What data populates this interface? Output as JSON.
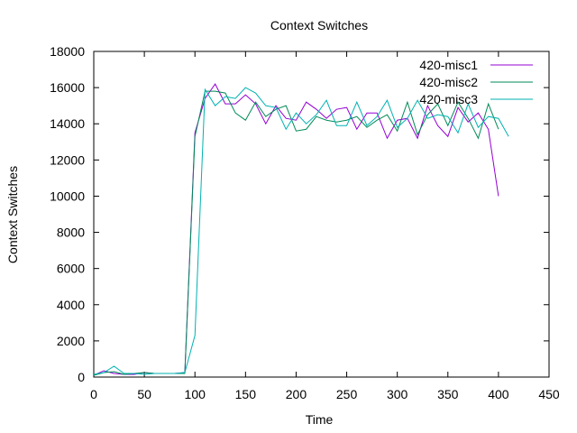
{
  "chart_data": {
    "type": "line",
    "title": "Context Switches",
    "xlabel": "Time",
    "ylabel": "Context Switches",
    "xlim": [
      0,
      450
    ],
    "ylim": [
      0,
      18000
    ],
    "xticks": [
      0,
      50,
      100,
      150,
      200,
      250,
      300,
      350,
      400,
      450
    ],
    "yticks": [
      0,
      2000,
      4000,
      6000,
      8000,
      10000,
      12000,
      14000,
      16000,
      18000
    ],
    "grid": false,
    "legend_position": "top-right",
    "series": [
      {
        "name": "420-misc1",
        "color": "#9400d3",
        "x": [
          0,
          10,
          20,
          30,
          40,
          50,
          60,
          70,
          80,
          90,
          100,
          110,
          120,
          130,
          140,
          150,
          160,
          170,
          180,
          190,
          200,
          210,
          220,
          230,
          240,
          250,
          260,
          270,
          280,
          290,
          300,
          310,
          320,
          330,
          340,
          350,
          360,
          370,
          380,
          390,
          400
        ],
        "y": [
          100,
          350,
          200,
          150,
          150,
          250,
          200,
          200,
          200,
          250,
          13500,
          15400,
          16200,
          15100,
          15100,
          15600,
          15100,
          14000,
          15000,
          14300,
          14200,
          15200,
          14800,
          14300,
          14800,
          14900,
          13700,
          14600,
          14600,
          13200,
          14200,
          14300,
          13200,
          15000,
          13900,
          13300,
          14900,
          14100,
          14600,
          13700,
          10000
        ]
      },
      {
        "name": "420-misc2",
        "color": "#008b57",
        "x": [
          0,
          10,
          20,
          30,
          40,
          50,
          60,
          70,
          80,
          90,
          100,
          110,
          120,
          130,
          140,
          150,
          160,
          170,
          180,
          190,
          200,
          210,
          220,
          230,
          240,
          250,
          260,
          270,
          280,
          290,
          300,
          310,
          320,
          330,
          340,
          350,
          360,
          370,
          380,
          390,
          400
        ],
        "y": [
          100,
          250,
          300,
          150,
          200,
          250,
          200,
          200,
          200,
          200,
          13300,
          15800,
          15800,
          15700,
          14600,
          14200,
          15200,
          14400,
          14800,
          15000,
          13600,
          13700,
          14400,
          14200,
          14100,
          14200,
          14400,
          13800,
          14200,
          14500,
          13600,
          15200,
          13400,
          14500,
          15100,
          13900,
          15200,
          14300,
          13200,
          15100,
          13700
        ]
      },
      {
        "name": "420-misc3",
        "color": "#00b2b2",
        "x": [
          0,
          10,
          20,
          30,
          40,
          50,
          60,
          70,
          80,
          90,
          100,
          110,
          120,
          130,
          140,
          150,
          160,
          170,
          180,
          190,
          200,
          210,
          220,
          230,
          240,
          250,
          260,
          270,
          280,
          290,
          300,
          310,
          320,
          330,
          340,
          350,
          360,
          370,
          380,
          390,
          400,
          410
        ],
        "y": [
          150,
          250,
          600,
          200,
          200,
          150,
          200,
          200,
          200,
          250,
          2300,
          15900,
          15000,
          15500,
          15400,
          16000,
          15700,
          15000,
          14900,
          13700,
          14600,
          14000,
          14500,
          15300,
          13900,
          13900,
          15200,
          13900,
          14400,
          15300,
          13800,
          14300,
          15300,
          14300,
          14500,
          14400,
          13500,
          15100,
          13800,
          14400,
          14300,
          13300
        ]
      }
    ]
  }
}
